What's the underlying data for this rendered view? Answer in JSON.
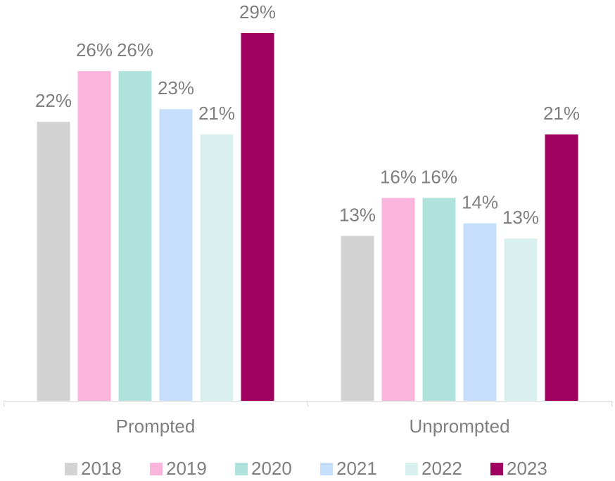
{
  "chart_data": {
    "type": "bar",
    "categories": [
      "Prompted",
      "Unprompted"
    ],
    "series": [
      {
        "name": "2018",
        "color": "#d3d3d3",
        "values": [
          22,
          13
        ],
        "value_labels": [
          "22%",
          "13%"
        ]
      },
      {
        "name": "2019",
        "color": "#fbb4dc",
        "values": [
          26,
          16
        ],
        "value_labels": [
          "26%",
          "16%"
        ]
      },
      {
        "name": "2020",
        "color": "#b0e3dc",
        "values": [
          26,
          16
        ],
        "value_labels": [
          "26%",
          "16%"
        ]
      },
      {
        "name": "2021",
        "color": "#c5dffb",
        "values": [
          23,
          14
        ],
        "value_labels": [
          "23%",
          "14%"
        ]
      },
      {
        "name": "2022",
        "color": "#d9f1ee",
        "values": [
          21,
          12.8
        ],
        "value_labels": [
          "21%",
          "13%"
        ]
      },
      {
        "name": "2023",
        "color": "#a0005f",
        "values": [
          29,
          21
        ],
        "value_labels": [
          "29%",
          "21%"
        ]
      }
    ],
    "legend": "bottom"
  }
}
